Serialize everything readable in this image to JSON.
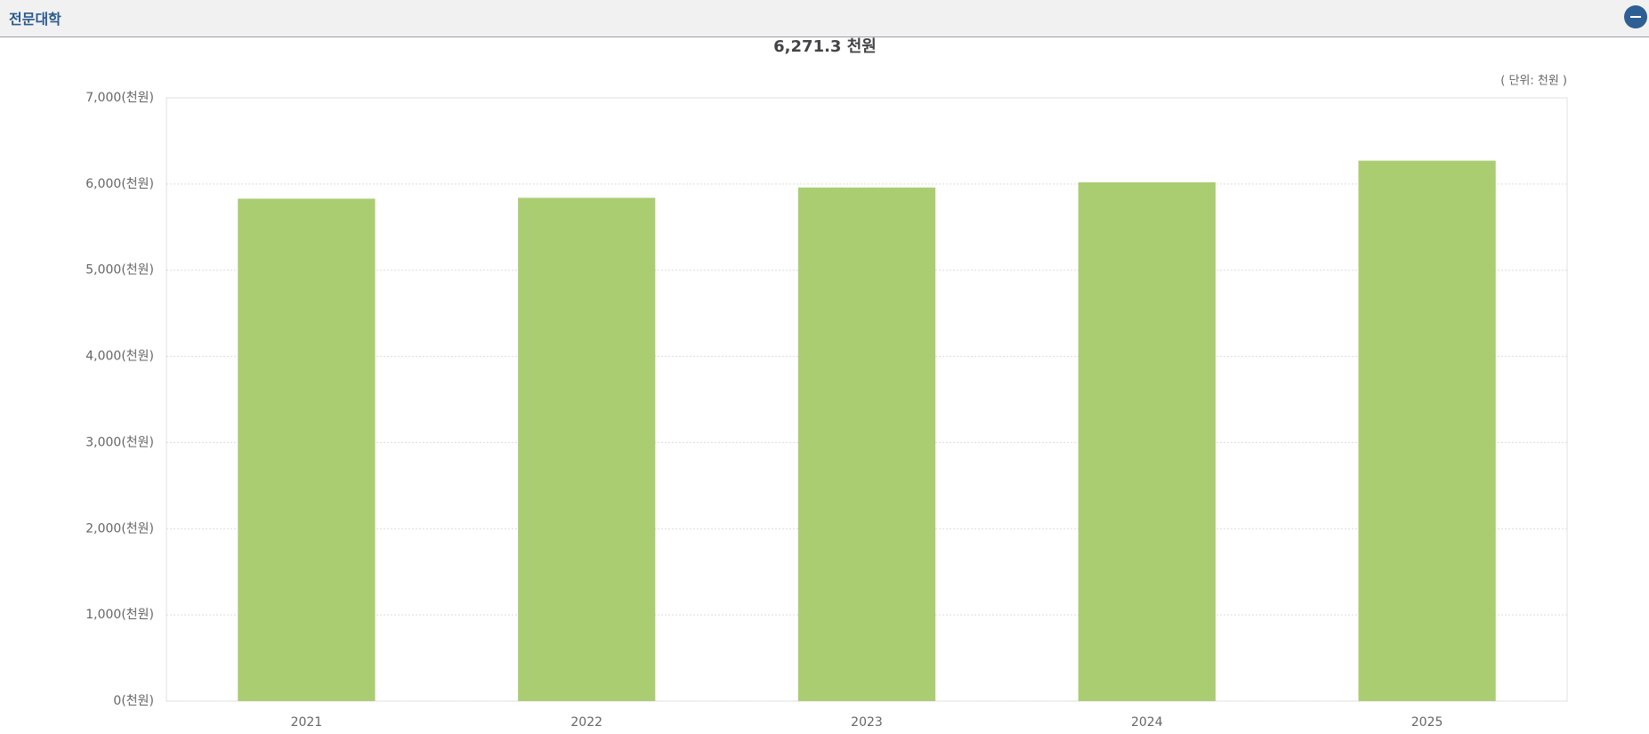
{
  "header": {
    "title": "전문대학"
  },
  "chart_data": {
    "type": "bar",
    "summary": "6,271.3 천원",
    "unit_note": "( 단위: 천원 )",
    "categories": [
      "2021",
      "2022",
      "2023",
      "2024",
      "2025"
    ],
    "values": [
      5830,
      5840,
      5960,
      6020,
      6271.3
    ],
    "color": "#abcd72",
    "ylim": [
      0,
      7000
    ],
    "yticks": [
      {
        "value": 0,
        "label": "0(천원)"
      },
      {
        "value": 1000,
        "label": "1,000(천원)"
      },
      {
        "value": 2000,
        "label": "2,000(천원)"
      },
      {
        "value": 3000,
        "label": "3,000(천원)"
      },
      {
        "value": 4000,
        "label": "4,000(천원)"
      },
      {
        "value": 5000,
        "label": "5,000(천원)"
      },
      {
        "value": 6000,
        "label": "6,000(천원)"
      },
      {
        "value": 7000,
        "label": "7,000(천원)"
      }
    ],
    "grid": true
  }
}
